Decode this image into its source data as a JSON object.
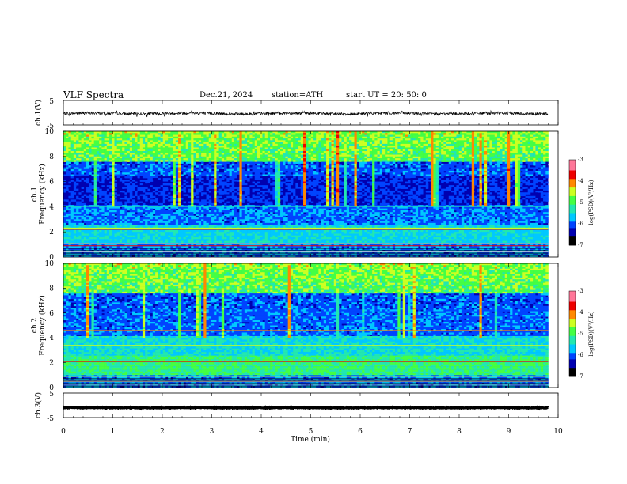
{
  "header": {
    "title": "VLF  Spectra",
    "date": "Dec.21, 2024",
    "station": "station=ATH",
    "start_ut": "start  UT  =    20: 50: 0"
  },
  "chart_data": [
    {
      "id": "ch1-waveform",
      "type": "line",
      "ylabel": "ch.1(V)",
      "ylim": [
        -5,
        5
      ],
      "yticks": [
        "5",
        "-5"
      ],
      "baseline": -0.3,
      "noise_amplitude": 0.6,
      "xlim": [
        0,
        10
      ],
      "x_end": 9.8
    },
    {
      "id": "ch1-spectrogram",
      "type": "heatmap",
      "ylabel": "ch.1\nFrequency (kHz)",
      "ylim": [
        0,
        10
      ],
      "yticks": [
        "0",
        "2",
        "4",
        "6",
        "8",
        "10"
      ],
      "xlim": [
        0,
        10
      ],
      "x_end": 9.8,
      "colorbar": {
        "label": "log(PSD)(V²/Hz)",
        "range": [
          -7,
          -3
        ],
        "ticks": [
          "-3",
          "-4",
          "-5",
          "-6",
          "-7"
        ]
      }
    },
    {
      "id": "ch2-spectrogram",
      "type": "heatmap",
      "ylabel": "ch.2\nFrequency (kHz)",
      "ylim": [
        0,
        10
      ],
      "yticks": [
        "0",
        "2",
        "4",
        "6",
        "8",
        "10"
      ],
      "xlim": [
        0,
        10
      ],
      "x_end": 9.8,
      "colorbar": {
        "label": "log(PSD)(V²/Hz)",
        "range": [
          -7,
          -3
        ],
        "ticks": [
          "-3",
          "-4",
          "-5",
          "-6",
          "-7"
        ]
      }
    },
    {
      "id": "ch3-waveform",
      "type": "line",
      "ylabel": "ch.3(V)",
      "ylim": [
        -5,
        5
      ],
      "yticks": [
        "5",
        "-5"
      ],
      "baseline": -1.0,
      "noise_amplitude": 0.15,
      "xlim": [
        0,
        10
      ],
      "x_end": 9.8
    }
  ],
  "xaxis": {
    "label": "Time  (min)",
    "ticks": [
      "0",
      "1",
      "2",
      "3",
      "4",
      "5",
      "6",
      "7",
      "8",
      "9",
      "10"
    ]
  },
  "colormap": [
    "#000000",
    "#0000b0",
    "#0044ff",
    "#00c8ff",
    "#22e8b0",
    "#44ff44",
    "#ccff22",
    "#ff8800",
    "#ee0000",
    "#ff7799",
    "#ffffff"
  ]
}
